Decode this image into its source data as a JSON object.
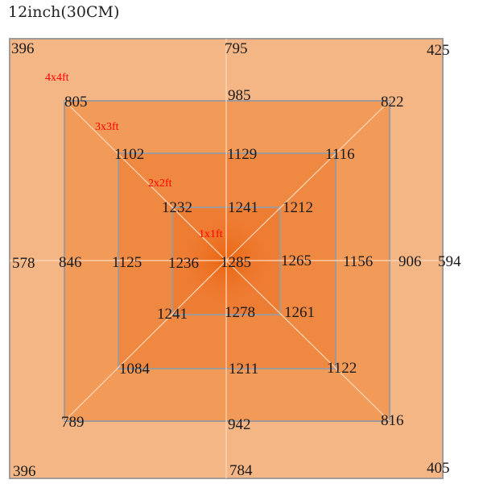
{
  "title": "12inch(30CM)",
  "colors": {
    "outer": "#f5b685",
    "ring_4x4": "#f29a58",
    "ring_3x3": "#ef8841",
    "ring_2x2": "#ee7d34",
    "inner_1x1": "#ec6e1c",
    "label_text": "#ff0000"
  },
  "zones": [
    {
      "label": "4x4ft"
    },
    {
      "label": "3x3ft"
    },
    {
      "label": "2x2ft"
    },
    {
      "label": "1x1ft"
    }
  ],
  "outer": {
    "top_left": "396",
    "top_center": "795",
    "top_right": "425",
    "left_center": "578",
    "right_center": "594",
    "bottom_left": "396",
    "bottom_center": "784",
    "bottom_right": "405"
  },
  "ring_4x4": {
    "top_left": "805",
    "top_center": "985",
    "top_right": "822",
    "left_center": "846",
    "right_center": "906",
    "bottom_left": "789",
    "bottom_center": "942",
    "bottom_right": "816"
  },
  "ring_3x3": {
    "top_left": "1102",
    "top_center": "1129",
    "top_right": "1116",
    "left_center": "1125",
    "right_center": "1156",
    "bottom_left": "1084",
    "bottom_center": "1211",
    "bottom_right": "1122"
  },
  "ring_2x2": {
    "top_left": "1232",
    "top_center": "1241",
    "top_right": "1212",
    "left_center": "1236",
    "right_center": "1265",
    "bottom_left": "1241",
    "bottom_center": "1278",
    "bottom_right": "1261"
  },
  "center": "1285"
}
